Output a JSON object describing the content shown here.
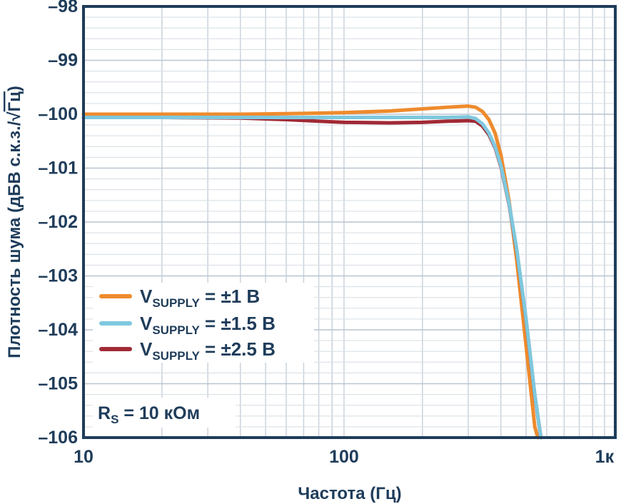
{
  "chart_data": {
    "type": "line",
    "title": "",
    "xlabel": "Частота (Гц)",
    "ylabel": "Плотность шума (дБВ с.к.з./√Гц)",
    "ylabel_text": "Плотность шума (дБВ с.к.з./",
    "ylabel_radical": "√",
    "ylabel_unit": "Гц",
    "ylabel_close": ")",
    "xscale": "log",
    "xlim": [
      10,
      1100
    ],
    "ylim": [
      -106,
      -98
    ],
    "x_ticks": [
      {
        "value": 10,
        "label": "10"
      },
      {
        "value": 100,
        "label": "100"
      },
      {
        "value": 1000,
        "label": "1к"
      }
    ],
    "y_ticks": [
      {
        "value": -98,
        "label": "–98"
      },
      {
        "value": -99,
        "label": "–99"
      },
      {
        "value": -100,
        "label": "–100"
      },
      {
        "value": -101,
        "label": "–101"
      },
      {
        "value": -102,
        "label": "–102"
      },
      {
        "value": -103,
        "label": "–103"
      },
      {
        "value": -104,
        "label": "–104"
      },
      {
        "value": -105,
        "label": "–105"
      },
      {
        "value": -106,
        "label": "–106"
      }
    ],
    "grid": true,
    "legend_position": "bottom-left",
    "series": [
      {
        "name": "VSUPPLY = ±1 В",
        "label_main": "V",
        "label_sub": "SUPPLY",
        "label_rest": " = ±1 В",
        "color": "#ee8b2d",
        "x": [
          10,
          20,
          40,
          60,
          80,
          100,
          150,
          200,
          250,
          300,
          320,
          340,
          360,
          380,
          400,
          430,
          460,
          500,
          540,
          555
        ],
        "y": [
          -100.0,
          -100.0,
          -100.0,
          -99.99,
          -99.98,
          -99.97,
          -99.94,
          -99.9,
          -99.87,
          -99.85,
          -99.87,
          -99.95,
          -100.1,
          -100.35,
          -100.75,
          -101.6,
          -102.7,
          -104.3,
          -105.8,
          -106.0
        ]
      },
      {
        "name": "VSUPPLY = ±1.5 В",
        "label_main": "V",
        "label_sub": "SUPPLY",
        "label_rest": " = ±1.5 В",
        "color": "#7ec8de",
        "x": [
          10,
          20,
          40,
          60,
          80,
          100,
          150,
          200,
          250,
          300,
          320,
          340,
          360,
          380,
          400,
          430,
          460,
          500,
          540,
          570
        ],
        "y": [
          -100.06,
          -100.06,
          -100.06,
          -100.06,
          -100.06,
          -100.06,
          -100.06,
          -100.06,
          -100.06,
          -100.05,
          -100.08,
          -100.18,
          -100.35,
          -100.6,
          -100.95,
          -101.65,
          -102.5,
          -103.8,
          -105.2,
          -106.0
        ]
      },
      {
        "name": "VSUPPLY = ±2.5 В",
        "label_main": "V",
        "label_sub": "SUPPLY",
        "label_rest": " = ±2.5 В",
        "color": "#a02a35",
        "x": [
          10,
          20,
          40,
          60,
          80,
          100,
          150,
          200,
          250,
          300,
          320,
          340,
          360,
          380,
          400,
          430,
          460,
          500,
          540,
          570
        ],
        "y": [
          -100.06,
          -100.06,
          -100.07,
          -100.1,
          -100.13,
          -100.15,
          -100.16,
          -100.15,
          -100.13,
          -100.12,
          -100.13,
          -100.22,
          -100.38,
          -100.62,
          -100.97,
          -101.67,
          -102.52,
          -103.82,
          -105.22,
          -106.0
        ]
      }
    ],
    "annotation_main": "R",
    "annotation_sub": "S",
    "annotation_rest": " = 10 кОм"
  }
}
